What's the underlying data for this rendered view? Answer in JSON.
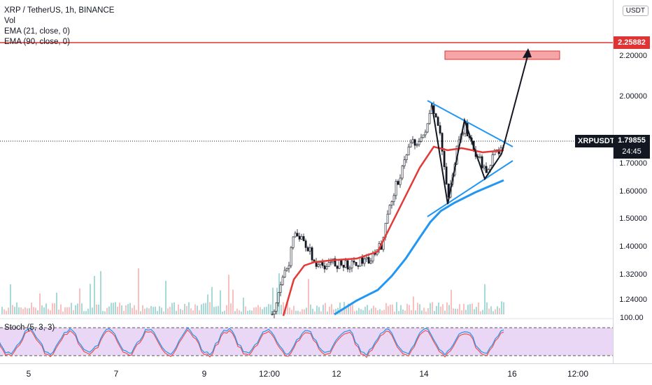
{
  "legend": {
    "symbol_line": "XRP / TetherUS, 1h, BINANCE",
    "vol": "Vol",
    "ema21": "EMA (21, close, 0)",
    "ema90": "EMA (90, close, 0)"
  },
  "price_axis": {
    "currency": "USDT",
    "ticks": [
      "2.20000",
      "2.00000",
      "1.70000",
      "1.60000",
      "1.50000",
      "1.40000",
      "1.32000",
      "1.24000"
    ],
    "target_price": "2.25882",
    "last_price": "1.79855",
    "countdown": "24:45",
    "symbol_tag": "XRPUSDT"
  },
  "stoch": {
    "label": "Stoch (5, 3, 3)",
    "top_tick": "100.00"
  },
  "time_axis": {
    "labels": [
      "5",
      "7",
      "9",
      "12:00",
      "12",
      "14",
      "16",
      "12:00"
    ]
  },
  "colors": {
    "candle": "#131722",
    "ema21": "#e53935",
    "ema90": "#2196f3",
    "target_line": "#e03333",
    "triangle": "#2196f3",
    "stoch_k": "#2196f3",
    "stoch_d": "#ef5350",
    "stoch_band": "#e1bee7"
  }
}
